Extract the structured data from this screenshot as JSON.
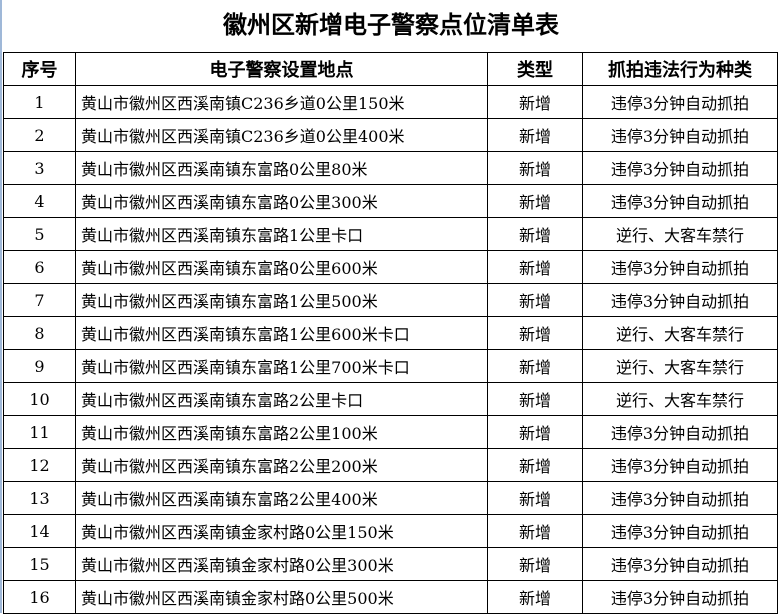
{
  "title": "徽州区新增电子警察点位清单表",
  "headers": [
    "序号",
    "电子警察设置地点",
    "类型",
    "抓拍违法行为种类"
  ],
  "rows": [
    [
      "1",
      "黄山市徽州区西溪南镇C236乡道0公里150米",
      "新增",
      "违停3分钟自动抓拍"
    ],
    [
      "2",
      "黄山市徽州区西溪南镇C236乡道0公里400米",
      "新增",
      "违停3分钟自动抓拍"
    ],
    [
      "3",
      "黄山市徽州区西溪南镇东富路0公里80米",
      "新增",
      "违停3分钟自动抓拍"
    ],
    [
      "4",
      "黄山市徽州区西溪南镇东富路0公里300米",
      "新增",
      "违停3分钟自动抓拍"
    ],
    [
      "5",
      "黄山市徽州区西溪南镇东富路1公里卡口",
      "新增",
      "逆行、大客车禁行"
    ],
    [
      "6",
      "黄山市徽州区西溪南镇东富路0公里600米",
      "新增",
      "违停3分钟自动抓拍"
    ],
    [
      "7",
      "黄山市徽州区西溪南镇东富路1公里500米",
      "新增",
      "违停3分钟自动抓拍"
    ],
    [
      "8",
      "黄山市徽州区西溪南镇东富路1公里600米卡口",
      "新增",
      "逆行、大客车禁行"
    ],
    [
      "9",
      "黄山市徽州区西溪南镇东富路1公里700米卡口",
      "新增",
      "逆行、大客车禁行"
    ],
    [
      "10",
      "黄山市徽州区西溪南镇东富路2公里卡口",
      "新增",
      "逆行、大客车禁行"
    ],
    [
      "11",
      "黄山市徽州区西溪南镇东富路2公里100米",
      "新增",
      "违停3分钟自动抓拍"
    ],
    [
      "12",
      "黄山市徽州区西溪南镇东富路2公里200米",
      "新增",
      "违停3分钟自动抓拍"
    ],
    [
      "13",
      "黄山市徽州区西溪南镇东富路2公里400米",
      "新增",
      "违停3分钟自动抓拍"
    ],
    [
      "14",
      "黄山市徽州区西溪南镇金家村路0公里150米",
      "新增",
      "违停3分钟自动抓拍"
    ],
    [
      "15",
      "黄山市徽州区西溪南镇金家村路0公里300米",
      "新增",
      "违停3分钟自动抓拍"
    ],
    [
      "16",
      "黄山市徽州区西溪南镇金家村路0公里500米",
      "新增",
      "违停3分钟自动抓拍"
    ]
  ]
}
